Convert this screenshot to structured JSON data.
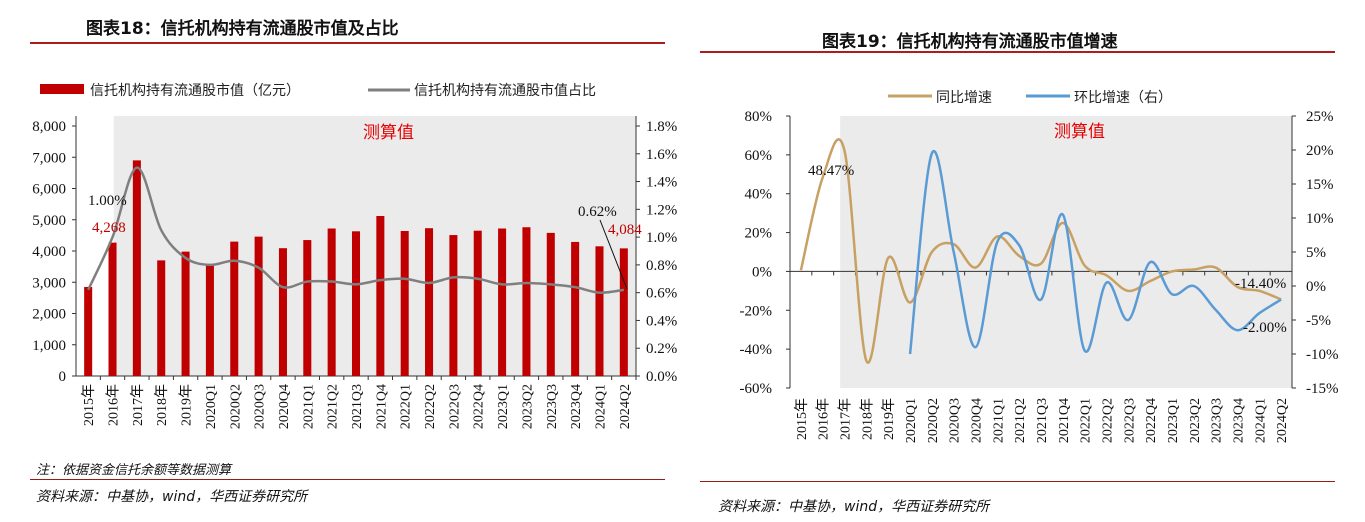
{
  "fig18": {
    "title": "图表18：信托机构持有流通股市值及占比",
    "note": "注：依据资金信托余额等数据测算",
    "source": "资料来源：中基协，wind，华西证券研究所"
  },
  "fig19": {
    "title": "图表19：信托机构持有流通股市值增速",
    "source": "资料来源：中基协，wind，华西证券研究所"
  },
  "chart_data": [
    {
      "type": "bar+line",
      "categories": [
        "2015年",
        "2016年",
        "2017年",
        "2018年",
        "2019年",
        "2020Q1",
        "2020Q2",
        "2020Q3",
        "2020Q4",
        "2021Q1",
        "2021Q2",
        "2021Q3",
        "2021Q4",
        "2022Q1",
        "2022Q2",
        "2022Q3",
        "2022Q4",
        "2023Q1",
        "2023Q2",
        "2023Q3",
        "2023Q4",
        "2024Q1",
        "2024Q2"
      ],
      "series": [
        {
          "name": "信托机构持有流通股市值（亿元）",
          "type": "bar",
          "axis": "left",
          "color": "#c00000",
          "values": [
            2850,
            4268,
            6900,
            3700,
            3980,
            3580,
            4300,
            4460,
            4090,
            4350,
            4720,
            4630,
            5120,
            4640,
            4730,
            4510,
            4650,
            4720,
            4760,
            4580,
            4290,
            4150,
            4084
          ]
        },
        {
          "name": "信托机构持有流通股市值占比",
          "type": "line",
          "axis": "right",
          "color": "#7f7f7f",
          "values": [
            0.62,
            1.0,
            1.5,
            1.05,
            0.85,
            0.8,
            0.83,
            0.78,
            0.64,
            0.68,
            0.68,
            0.66,
            0.69,
            0.7,
            0.67,
            0.71,
            0.7,
            0.66,
            0.67,
            0.66,
            0.64,
            0.6,
            0.62
          ]
        }
      ],
      "y_left": {
        "min": 0,
        "max": 8000,
        "ticks": [
          "0",
          "1,000",
          "2,000",
          "3,000",
          "4,000",
          "5,000",
          "6,000",
          "7,000",
          "8,000"
        ]
      },
      "y_right": {
        "min": 0,
        "max": 1.8,
        "ticks": [
          "0.0%",
          "0.2%",
          "0.4%",
          "0.6%",
          "0.8%",
          "1.0%",
          "1.2%",
          "1.4%",
          "1.6%",
          "1.8%"
        ]
      },
      "shade_label": "测算值",
      "annotations": {
        "a1": "1.00%",
        "a2": "4,268",
        "a3": "0.62%",
        "a4": "4,084"
      }
    },
    {
      "type": "line",
      "categories": [
        "2015年",
        "2016年",
        "2017年",
        "2018年",
        "2019年",
        "2020Q1",
        "2020Q2",
        "2020Q3",
        "2020Q4",
        "2021Q1",
        "2021Q2",
        "2021Q3",
        "2021Q4",
        "2022Q1",
        "2022Q2",
        "2022Q3",
        "2022Q4",
        "2023Q1",
        "2023Q2",
        "2023Q3",
        "2023Q4",
        "2024Q1",
        "2024Q2"
      ],
      "series": [
        {
          "name": "同比增速",
          "axis": "left",
          "color": "#c8a063",
          "values": [
            0.6,
            48.47,
            62,
            -46,
            7,
            -16,
            10,
            14,
            2,
            18,
            8,
            4,
            25,
            3,
            -2,
            -10,
            -5,
            0,
            1,
            2,
            -8,
            -10,
            -14.4
          ]
        },
        {
          "name": "环比增速（右）",
          "axis": "right",
          "color": "#5b9bd5",
          "values": [
            null,
            null,
            null,
            null,
            null,
            -10,
            19.5,
            5,
            -9,
            6.5,
            6,
            -2,
            10.5,
            -9.5,
            0.5,
            -5,
            3.5,
            -1.2,
            0,
            -3.5,
            -6.5,
            -4,
            -2.0
          ]
        }
      ],
      "y_left": {
        "min": -60,
        "max": 80,
        "ticks": [
          "-60%",
          "-40%",
          "-20%",
          "0%",
          "20%",
          "40%",
          "60%",
          "80%"
        ]
      },
      "y_right": {
        "min": -15,
        "max": 25,
        "ticks": [
          "-15%",
          "-10%",
          "-5%",
          "0%",
          "5%",
          "10%",
          "15%",
          "20%",
          "25%"
        ]
      },
      "shade_label": "测算值",
      "annotations": {
        "a1": "48.47%",
        "a2": "-14.40%",
        "a3": "-2.00%"
      }
    }
  ]
}
